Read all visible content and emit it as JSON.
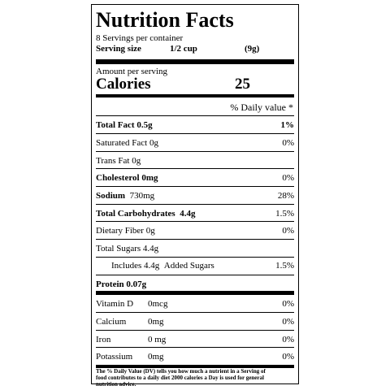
{
  "header": {
    "title": "Nutrition Facts",
    "servings": "8 Servings per container",
    "serving_size_label": "Serving size",
    "serving_size": "1/2 cup",
    "serving_weight": "(9g)"
  },
  "calories": {
    "amount_label": "Amount per serving",
    "label": "Calories",
    "value": "25"
  },
  "daily_value_header": "% Daily value *",
  "nutrients": [
    {
      "name": "Total Fact",
      "amount": "0.5g",
      "dv": "1%"
    },
    {
      "name": "Saturated Fact",
      "amount": "0g",
      "dv": "0%"
    },
    {
      "name": "Trans Fat",
      "amount": "0g"
    },
    {
      "name": "Cholesterol",
      "amount": "0mg",
      "dv": "0%"
    },
    {
      "name": "Sodium",
      "amount": "730mg",
      "dv": "28%"
    },
    {
      "name": "Total Carbohydrates",
      "amount": "4.4g",
      "dv": "1.5%"
    },
    {
      "name": "Dietary Fiber",
      "amount": "0g",
      "dv": "0%"
    },
    {
      "name": "Total Sugars",
      "amount": "4.4g"
    },
    {
      "name": "Includes 4.4g",
      "amount": "Added Sugars",
      "dv": "1.5%"
    },
    {
      "name": "Protein",
      "amount": "0.07g"
    }
  ],
  "vitamins": [
    {
      "name": "Vitamin D",
      "amount": "0mcg",
      "dv": "0%"
    },
    {
      "name": "Calcium",
      "amount": "0mg",
      "dv": "0%"
    },
    {
      "name": "Iron",
      "amount": "0 mg",
      "dv": "0%"
    },
    {
      "name": "Potassium",
      "amount": "0mg",
      "dv": "0%"
    }
  ],
  "footnote": "The % Daily Value (DV) tells you how much a nutrient in a Serving of food contributes to a daily diet 2000 calories a Day is used for general nutrition advice."
}
